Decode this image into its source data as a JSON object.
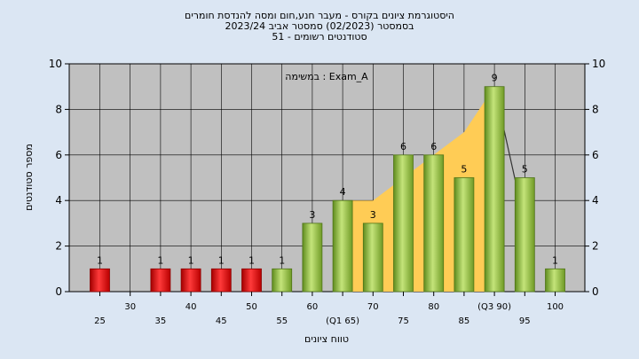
{
  "chart_data": {
    "type": "bar",
    "title_lines": [
      "היסטוגרמת ציונים בקורס - מעבר חנע,חום ומסה להנדסת חומרים",
      "בסמסטר  (02/2023)  סמסטר אביב 2023/24",
      "סטודנטים רשומים - 51"
    ],
    "annotation": "במשימה : Exam_A",
    "xlabel": "טווח ציונים",
    "ylabel": "מספר סטודנטים",
    "ylim": [
      0,
      10
    ],
    "yticks": [
      0,
      2,
      4,
      6,
      8,
      10
    ],
    "grid": true,
    "categories": [
      25,
      30,
      35,
      40,
      45,
      50,
      55,
      60,
      65,
      70,
      75,
      80,
      85,
      90,
      95,
      100
    ],
    "x_tick_labels": [
      "25",
      "30",
      "35",
      "40",
      "45",
      "50",
      "55",
      "60",
      "(Q1 65)",
      "70",
      "75",
      "80",
      "85",
      "(Q3 90)",
      "95",
      "100"
    ],
    "values": [
      1,
      0,
      1,
      1,
      1,
      1,
      1,
      3,
      4,
      3,
      6,
      6,
      5,
      9,
      5,
      1
    ],
    "data_labels": [
      "1",
      "",
      "1",
      "1",
      "1",
      "1",
      "1",
      "3",
      "4",
      "3",
      "6",
      "6",
      "5",
      "9",
      "5",
      "1"
    ],
    "bar_colors": [
      "#e02020",
      "#e02020",
      "#e02020",
      "#e02020",
      "#e02020",
      "#e02020",
      "#9ccc48",
      "#9ccc48",
      "#9ccc48",
      "#9ccc48",
      "#9ccc48",
      "#9ccc48",
      "#9ccc48",
      "#9ccc48",
      "#9ccc48",
      "#9ccc48"
    ],
    "iqr_area": {
      "x": [
        65,
        70,
        75,
        80,
        85,
        90
      ],
      "y": [
        4,
        4,
        5,
        6,
        7,
        9
      ],
      "color": "#ffcc55"
    },
    "trend_segment": {
      "x": [
        90,
        95
      ],
      "y": [
        9,
        3
      ]
    },
    "colors": {
      "background": "#dbe6f3",
      "plot_background": "#c0c0c0",
      "grid": "#000000",
      "low_bars": "#e02020",
      "high_bars": "#9ccc48"
    }
  }
}
